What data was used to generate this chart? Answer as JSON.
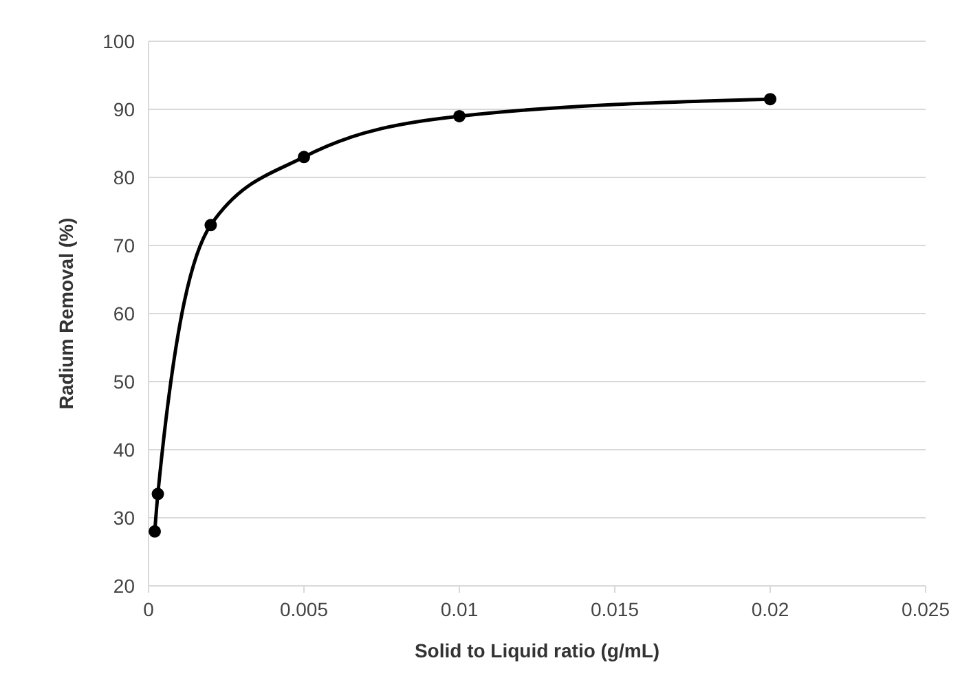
{
  "chart_data": {
    "type": "line",
    "xlabel": "Solid to Liquid ratio (g/mL)",
    "ylabel": "Radium Removal (%)",
    "x": [
      0.0002,
      0.0003,
      0.002,
      0.005,
      0.01,
      0.02
    ],
    "series": [
      {
        "color": "#000000",
        "values": [
          28,
          33.5,
          73,
          83,
          89,
          91.5
        ]
      }
    ],
    "xlim": [
      0,
      0.025
    ],
    "xticks": [
      0,
      0.005,
      0.01,
      0.015,
      0.02,
      0.025
    ],
    "ylim": [
      20,
      100
    ],
    "yticks": [
      20,
      30,
      40,
      50,
      60,
      70,
      80,
      90,
      100
    ],
    "grid": "y",
    "marker": "circle",
    "line_style": "solid"
  }
}
